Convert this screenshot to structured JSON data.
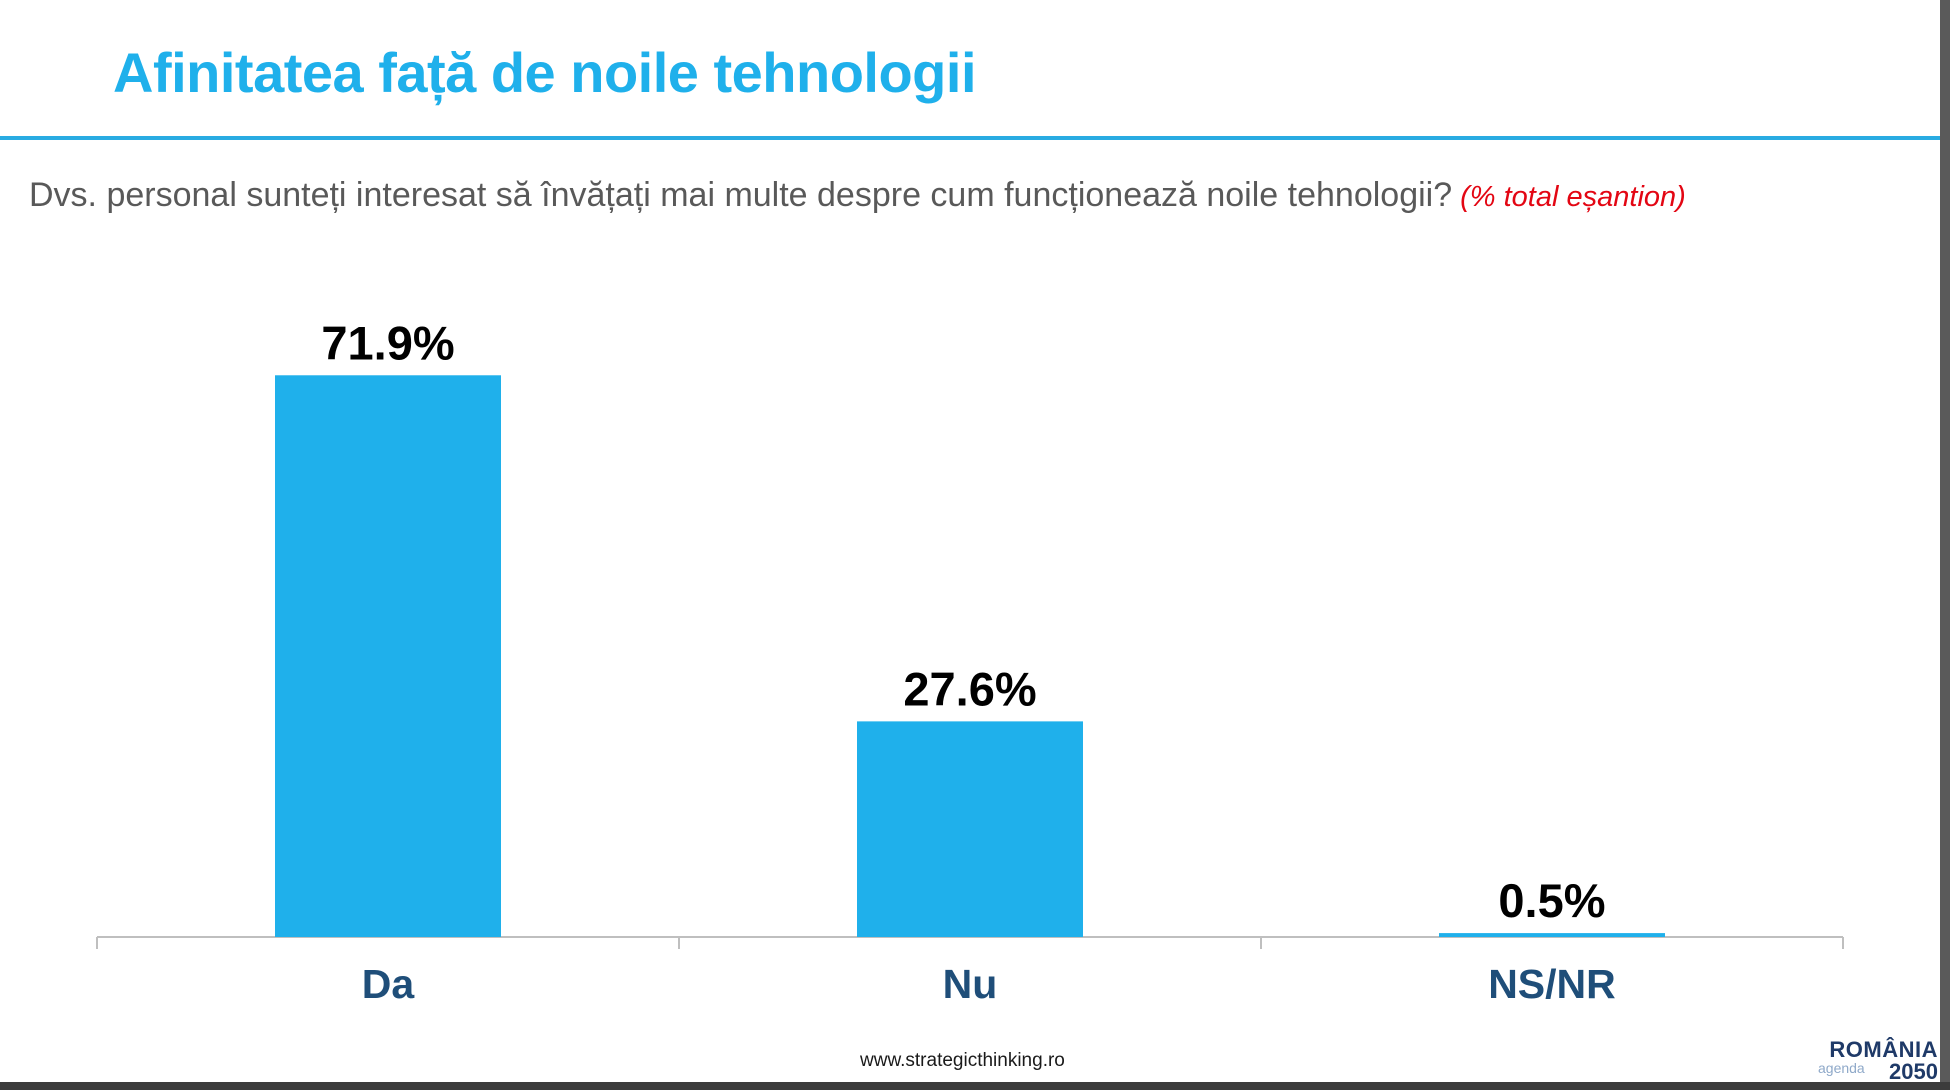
{
  "slide": {
    "title": "Afinitatea față de noile tehnologii",
    "question": "Dvs. personal sunteți interesat să învățați mai multe despre cum funcționează noile tehnologii?",
    "note": "(% total eșantion)",
    "footer_url": "www.strategicthinking.ro",
    "logo": {
      "line1": "ROMÂNIA",
      "line2": "agenda",
      "line3": "2050"
    }
  },
  "chart_data": {
    "type": "bar",
    "categories": [
      "Da",
      "Nu",
      "NS/NR"
    ],
    "values": [
      71.9,
      27.6,
      0.5
    ],
    "data_labels": [
      "71.9%",
      "27.6%",
      "0.5%"
    ],
    "ylim": [
      0,
      100
    ],
    "grid": false,
    "legend": "none",
    "bar_color": "#1fb0eb",
    "label_color": "#1f4e79"
  }
}
